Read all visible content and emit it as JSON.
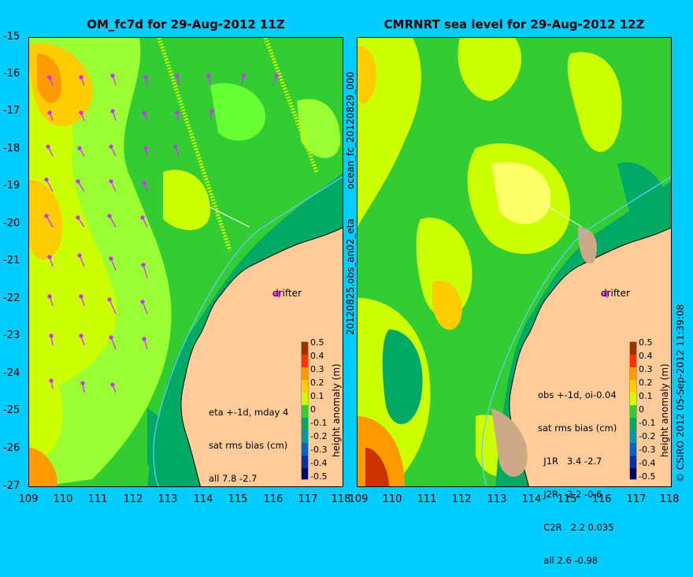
{
  "left_panel": {
    "title": "OM_fc7d for 29-Aug-2012 11Z",
    "annotation": [
      "eta +-1d, mday 4",
      "sat rms bias (cm)",
      "all 7.8 -2.7"
    ],
    "drifter_label": "drifter",
    "side_text_top": "ocean_fc_20120829_000",
    "side_text_bottom": "20120825.obs_an02_eta"
  },
  "right_panel": {
    "title": "CMRNRT sea level  for 29-Aug-2012 12Z",
    "annotation": [
      "obs +-1d, oi-0.04",
      "sat rms bias (cm)",
      "  J1R   3.4 -2.7",
      "  J2R   2.2 -0.6",
      "  C2R   2.2 0.035",
      "  all 2.6 -0.98"
    ],
    "drifter_label": "drifter",
    "side_text": "© CSIRO 2012   05-Sep-2012 11:39:08"
  },
  "axes": {
    "y_ticks": [
      "-15",
      "-16",
      "-17",
      "-18",
      "-19",
      "-20",
      "-21",
      "-22",
      "-23",
      "-24",
      "-25",
      "-26",
      "-27"
    ],
    "x_ticks_left": [
      "109",
      "110",
      "111",
      "112",
      "113",
      "114",
      "115",
      "116",
      "117",
      "118"
    ],
    "x_ticks_right": [
      "109",
      "110",
      "111",
      "112",
      "113",
      "114",
      "115",
      "116",
      "117",
      "118"
    ]
  },
  "colorbar": {
    "label": "height anomaly (m)",
    "ticks": [
      "0.5",
      "0.4",
      "0.3",
      "0.2",
      "0.1",
      "0",
      "-0.1",
      "-0.2",
      "-0.3",
      "-0.4",
      "-0.5"
    ],
    "colors": [
      "#cc3300",
      "#ff6600",
      "#ff9900",
      "#ffcc00",
      "#ccff00",
      "#33cc33",
      "#00aa66",
      "#0099aa",
      "#0066cc",
      "#0033aa",
      "#000066"
    ]
  },
  "colors": {
    "background": "#00ccff",
    "land": "#ffcc99",
    "ocean_green": "#33cc33",
    "arrow": "#cc33ff"
  }
}
